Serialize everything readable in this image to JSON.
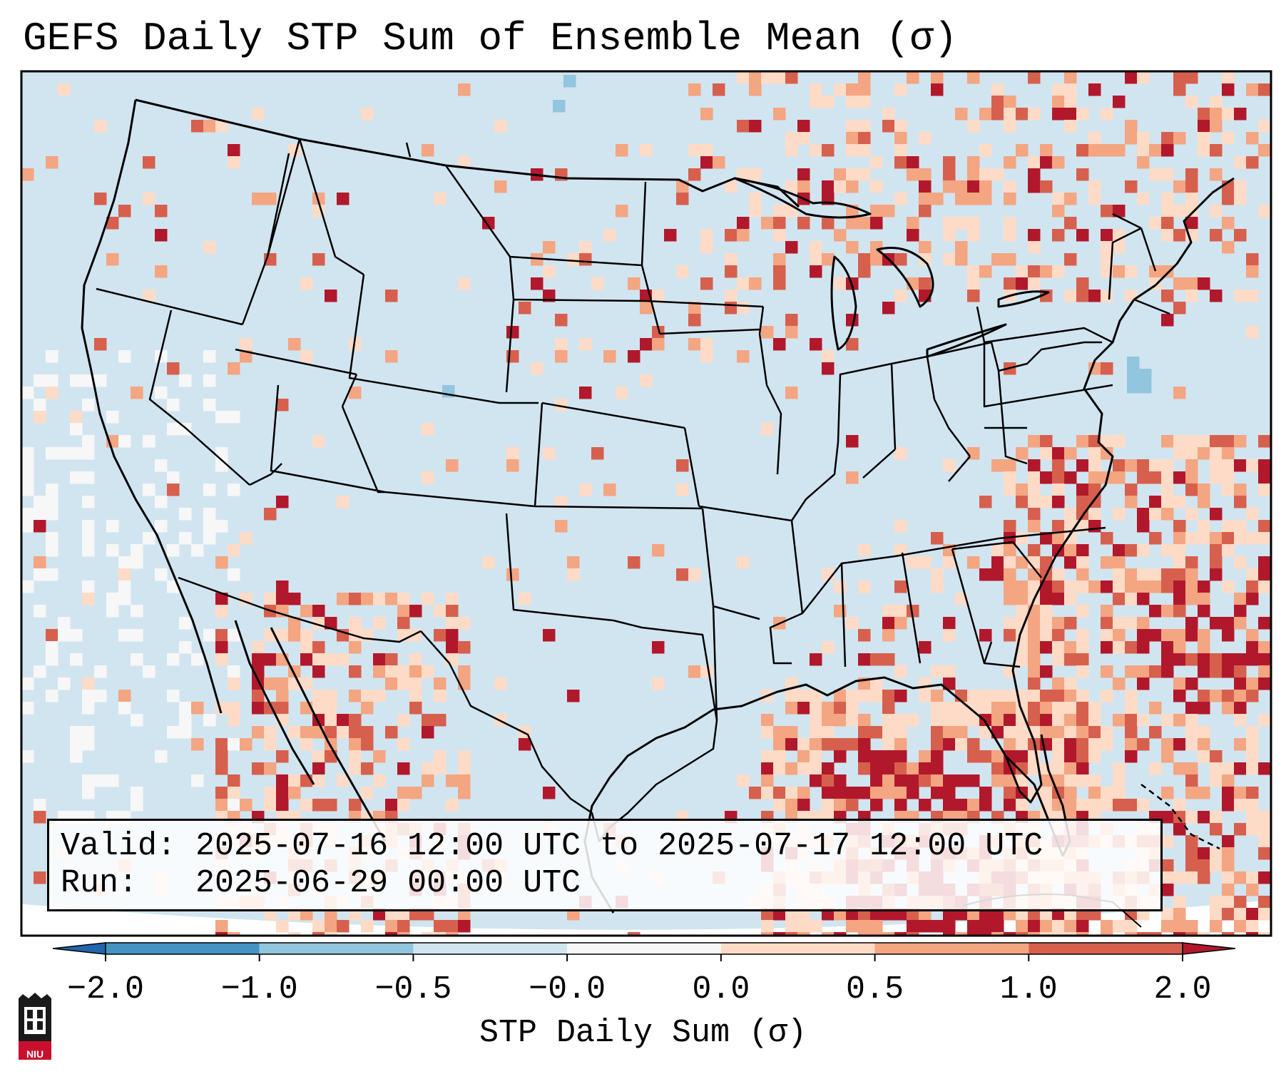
{
  "title": "GEFS Daily STP Sum of Ensemble Mean (σ)",
  "info": {
    "valid_line": "Valid: 2025-07-16 12:00 UTC to 2025-07-17 12:00 UTC",
    "run_line": "Run:   2025-06-29 00:00 UTC"
  },
  "colorbar": {
    "label": "STP Daily Sum (σ)",
    "ticks": [
      "−2.0",
      "−1.0",
      "−0.5",
      "−0.0",
      "0.0",
      "0.5",
      "1.0",
      "2.0"
    ],
    "colors": [
      "#2166ac",
      "#4393c3",
      "#92c5de",
      "#d1e5f0",
      "#f7f7f7",
      "#fddbc7",
      "#f4a582",
      "#d6604d",
      "#b2182b"
    ]
  },
  "logo": {
    "text": "NIU"
  },
  "map_colors": {
    "background": "#d1e5f0",
    "outside": "#ffffff",
    "lines": "#000000"
  }
}
